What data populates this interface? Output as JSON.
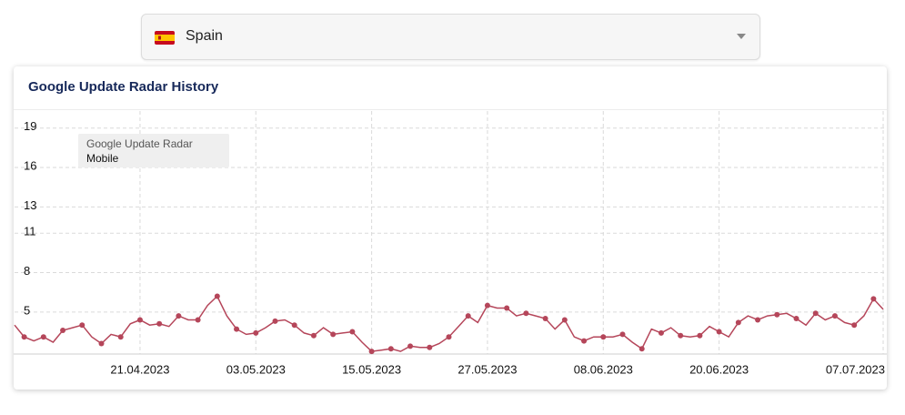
{
  "dropdown": {
    "selected": "Spain"
  },
  "chart_data": {
    "type": "line",
    "title": "Google Update Radar History",
    "legend_title": "Google Update Radar",
    "x": [
      "08.04.2023",
      "09.04.2023",
      "10.04.2023",
      "11.04.2023",
      "12.04.2023",
      "13.04.2023",
      "14.04.2023",
      "15.04.2023",
      "16.04.2023",
      "17.04.2023",
      "18.04.2023",
      "19.04.2023",
      "20.04.2023",
      "21.04.2023",
      "22.04.2023",
      "23.04.2023",
      "24.04.2023",
      "25.04.2023",
      "26.04.2023",
      "27.04.2023",
      "28.04.2023",
      "29.04.2023",
      "30.04.2023",
      "01.05.2023",
      "02.05.2023",
      "03.05.2023",
      "04.05.2023",
      "05.05.2023",
      "06.05.2023",
      "07.05.2023",
      "08.05.2023",
      "09.05.2023",
      "10.05.2023",
      "11.05.2023",
      "12.05.2023",
      "13.05.2023",
      "14.05.2023",
      "15.05.2023",
      "16.05.2023",
      "17.05.2023",
      "18.05.2023",
      "19.05.2023",
      "20.05.2023",
      "21.05.2023",
      "22.05.2023",
      "23.05.2023",
      "24.05.2023",
      "25.05.2023",
      "26.05.2023",
      "27.05.2023",
      "28.05.2023",
      "29.05.2023",
      "30.05.2023",
      "31.05.2023",
      "01.06.2023",
      "02.06.2023",
      "03.06.2023",
      "04.06.2023",
      "05.06.2023",
      "06.06.2023",
      "07.06.2023",
      "08.06.2023",
      "09.06.2023",
      "10.06.2023",
      "11.06.2023",
      "12.06.2023",
      "13.06.2023",
      "14.06.2023",
      "15.06.2023",
      "16.06.2023",
      "17.06.2023",
      "18.06.2023",
      "19.06.2023",
      "20.06.2023",
      "21.06.2023",
      "22.06.2023",
      "23.06.2023",
      "24.06.2023",
      "25.06.2023",
      "26.06.2023",
      "27.06.2023",
      "28.06.2023",
      "29.06.2023",
      "30.06.2023",
      "01.07.2023",
      "02.07.2023",
      "03.07.2023",
      "04.07.2023",
      "05.07.2023",
      "06.07.2023",
      "07.07.2023"
    ],
    "series": [
      {
        "name": "Mobile",
        "color": "#b5465a",
        "values": [
          4.0,
          3.1,
          2.8,
          3.1,
          2.7,
          3.6,
          3.8,
          4.0,
          3.1,
          2.6,
          3.3,
          3.1,
          4.1,
          4.4,
          4.0,
          4.1,
          3.9,
          4.7,
          4.4,
          4.4,
          5.5,
          6.2,
          4.7,
          3.7,
          3.3,
          3.4,
          3.8,
          4.3,
          4.4,
          4.0,
          3.4,
          3.2,
          3.8,
          3.3,
          3.4,
          3.5,
          2.7,
          2.0,
          2.1,
          2.2,
          2.0,
          2.4,
          2.3,
          2.3,
          2.6,
          3.1,
          3.9,
          4.7,
          4.2,
          5.5,
          5.3,
          5.3,
          4.7,
          4.9,
          4.7,
          4.5,
          3.7,
          4.4,
          3.1,
          2.8,
          3.1,
          3.1,
          3.1,
          3.3,
          2.7,
          2.2,
          3.7,
          3.4,
          3.8,
          3.2,
          3.1,
          3.2,
          3.9,
          3.5,
          3.1,
          4.2,
          4.7,
          4.4,
          4.7,
          4.8,
          4.9,
          4.5,
          4.0,
          4.9,
          4.4,
          4.7,
          4.2,
          4.0,
          4.7,
          6.0,
          5.2
        ]
      }
    ],
    "xlim": [
      "08.04.2023",
      "07.07.2023"
    ],
    "xticks": [
      "21.04.2023",
      "03.05.2023",
      "15.05.2023",
      "27.05.2023",
      "08.06.2023",
      "20.06.2023",
      "07.07.2023"
    ],
    "ylim": [
      1.8,
      20.3
    ],
    "yticks": [
      5,
      8,
      11,
      13,
      16,
      19
    ],
    "grid": true
  }
}
